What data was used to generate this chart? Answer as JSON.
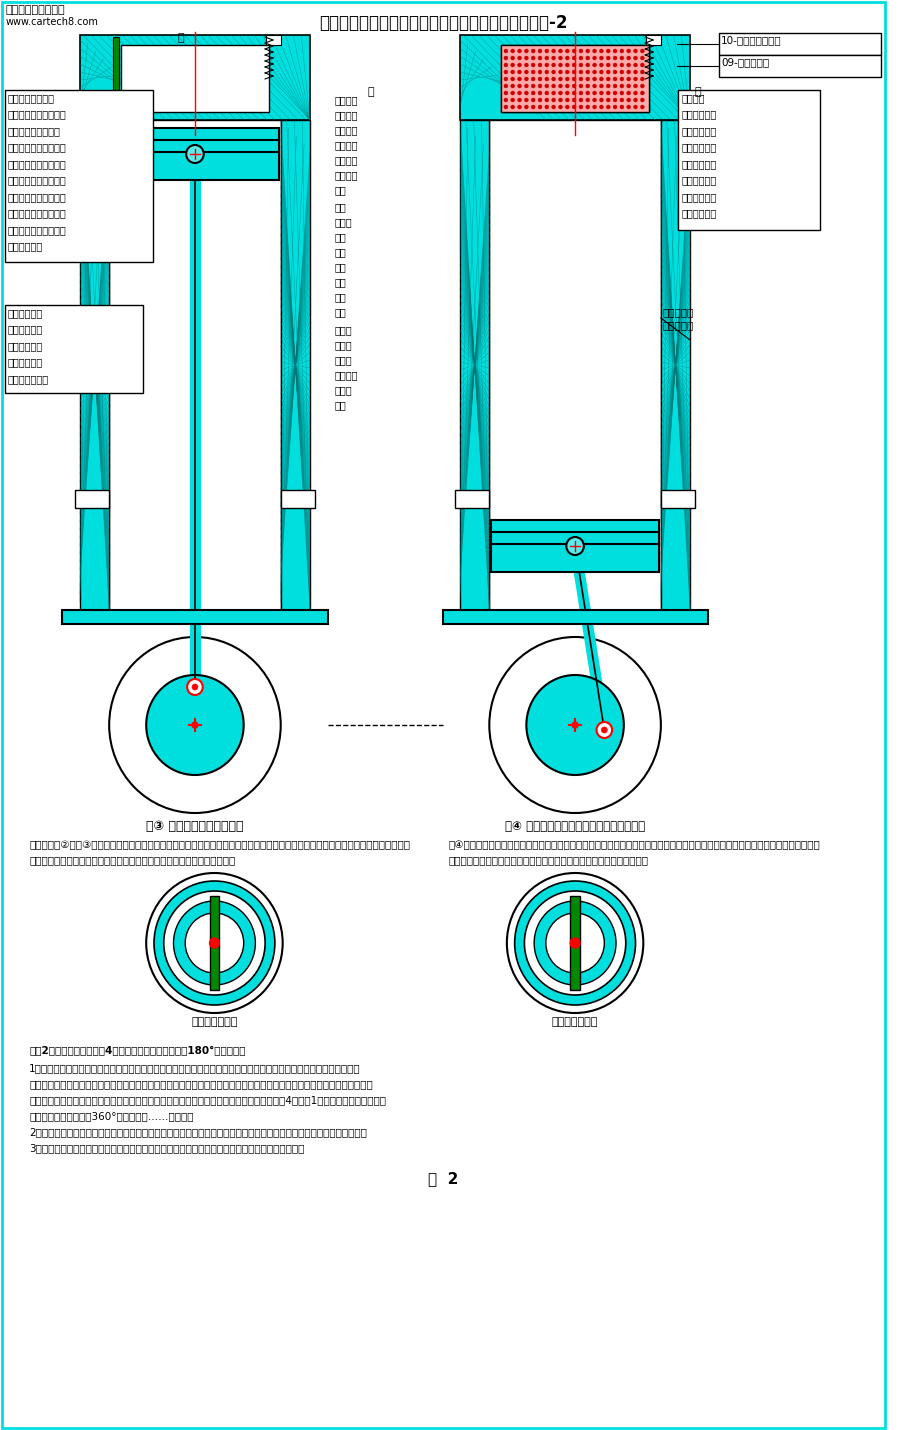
{
  "title": "一种新型的二行程汽缸活塞式发动机工作过程示意图-2",
  "watermark_line1": "中国汽车工程师之家",
  "watermark_line2": "www.cartech8.com",
  "fig_label": "图  2",
  "label_10": "10-排气单向阀弹簧",
  "label_09": "09-排气单向阀",
  "fig3_label": "图③ 活塞由上止点开始下行",
  "fig4_label": "图④ 活塞由上止点下行到下止点即做功完成",
  "sub_label_left": "汽缸盖的左视图",
  "sub_label_right": "汽缸盖的左视图",
  "left_box1": [
    "储存在燃烧室内的",
    "可燃混合气体被火花塞",
    "点燃。燃烧室的高温",
    "高压气体，推动活塞与",
    "高温高压气体喷射孔分",
    "离、自动关闭排气口的",
    "同时，从高温高压气体",
    "喷射孔进入上气室推动",
    "活塞的顶部使活塞开始",
    "下行即做功；"
  ],
  "left_box2": [
    "活塞上行，压",
    "缩空气出气口",
    "单向阀在弹簧",
    "的作用下自动",
    "关闭其出气口；"
  ],
  "right_box1": [
    "由其燃烧",
    "室内的气体压",
    "力高于气缸内",
    "的气体压力，",
    "排气口处于关",
    "闭状态，直至",
    "活塞到达下止",
    "点做功完成。"
  ],
  "mid_ann1": [
    "燃烧室内",
    "的高温高",
    "压气体推",
    "动排气单",
    "向阀自动",
    "关闭排气",
    "口；"
  ],
  "mid_ann2": [
    "进气",
    "完成，",
    "新鲜",
    "空气",
    "进气",
    "口自",
    "动关",
    "闭；"
  ],
  "mid_ann3": [
    "压缩空",
    "气出气",
    "口单向",
    "阀（开）",
    "自动关",
    "闭；"
  ],
  "fig3_lines": [
    "瞬间，从图②到图③，活塞到达上止点，此时排气完成，下气室进气完成，新鲜空气进气口自动关闭；燃烧室进气完成，燃烧室进气单向",
    "阀自动关闭燃烧室进气口，储存在燃烧室内的可燃混合气体被火花塞点燃；"
  ],
  "fig4_lines": [
    "图④中燃烧室内的可燃混合气体被火花塞点燃，燃烧室的高温高压气体，推动排气单向阀自动关闭排气口，同时推动活塞与高温高压气",
    "体喷射孔分离，从高温高压气体喷射孔进入上气室推动活塞下行即做功；"
  ],
  "bottom_intro": "从图2活塞由上止点行到图4活塞到达下止点即曲轴转角180°的过程中：",
  "bottom_lines": [
    "1、储存在燃烧室内的可燃混合气体被火花塞点燃，燃烧室的高温高压气体，推动活塞与高温高压气体喷射孔分离、自动",
    "关闭排气口的同时，从高温高压气体喷射孔进入上气室推动活塞的顶部使活塞开始下行即做功；由其燃烧室内的气体压力高于",
    "气缸内的气体压力，活阀处于关闭排气口的状态不变，直至活塞到达下止点做功完成，即从图4回到图1的状态，活塞在气缸内上",
    "下两个行程，曲轴旋转360°做一次功。……因此循环",
    "2、活塞下行时，活塞在下气室压缩空气，其下气室内的压缩空气推动单向阀使出气口自动开启，其空气被压缩进入气泵。",
    "3、设置在汽缸底的新鲜空气进气口单向阀在其弹簧的推动下使其新鲜空气进气口自然处关闭状态；"
  ]
}
